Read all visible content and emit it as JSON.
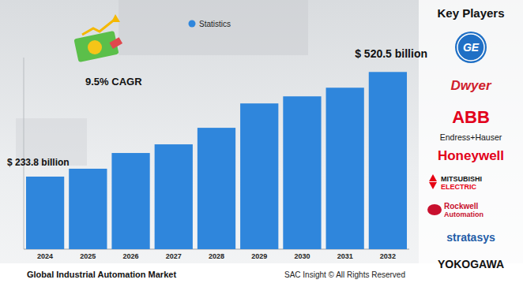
{
  "chart_data": {
    "type": "bar",
    "title": "Global Industrial Automation Market",
    "categories": [
      "2024",
      "2025",
      "2026",
      "2027",
      "2028",
      "2029",
      "2030",
      "2031",
      "2032"
    ],
    "series": [
      {
        "name": "Statistics",
        "color": "#2f86dc",
        "values": [
          233.8,
          255.4,
          298.5,
          322.2,
          367.5,
          434.3,
          453.7,
          477.4,
          520.5
        ],
        "value_labels": [
          "$ 233.8 billion",
          null,
          null,
          null,
          null,
          null,
          null,
          null,
          "$ 520.5 billion"
        ]
      }
    ],
    "ylim": [
      35,
      560
    ],
    "grid": false,
    "data_labels": true,
    "tick_labels": "x",
    "legend": "top",
    "annotations": [
      "9.5% CAGR"
    ],
    "source": "SAC Insight © All Rights Reserved"
  },
  "key_players": {
    "title": "Key Players",
    "companies": [
      "GE",
      "Dwyer",
      "ABB",
      "Endress+Hauser",
      "Honeywell",
      "MITSUBISHI ELECTRIC",
      "Rockwell Automation",
      "stratasys",
      "YOKOGAWA"
    ]
  }
}
